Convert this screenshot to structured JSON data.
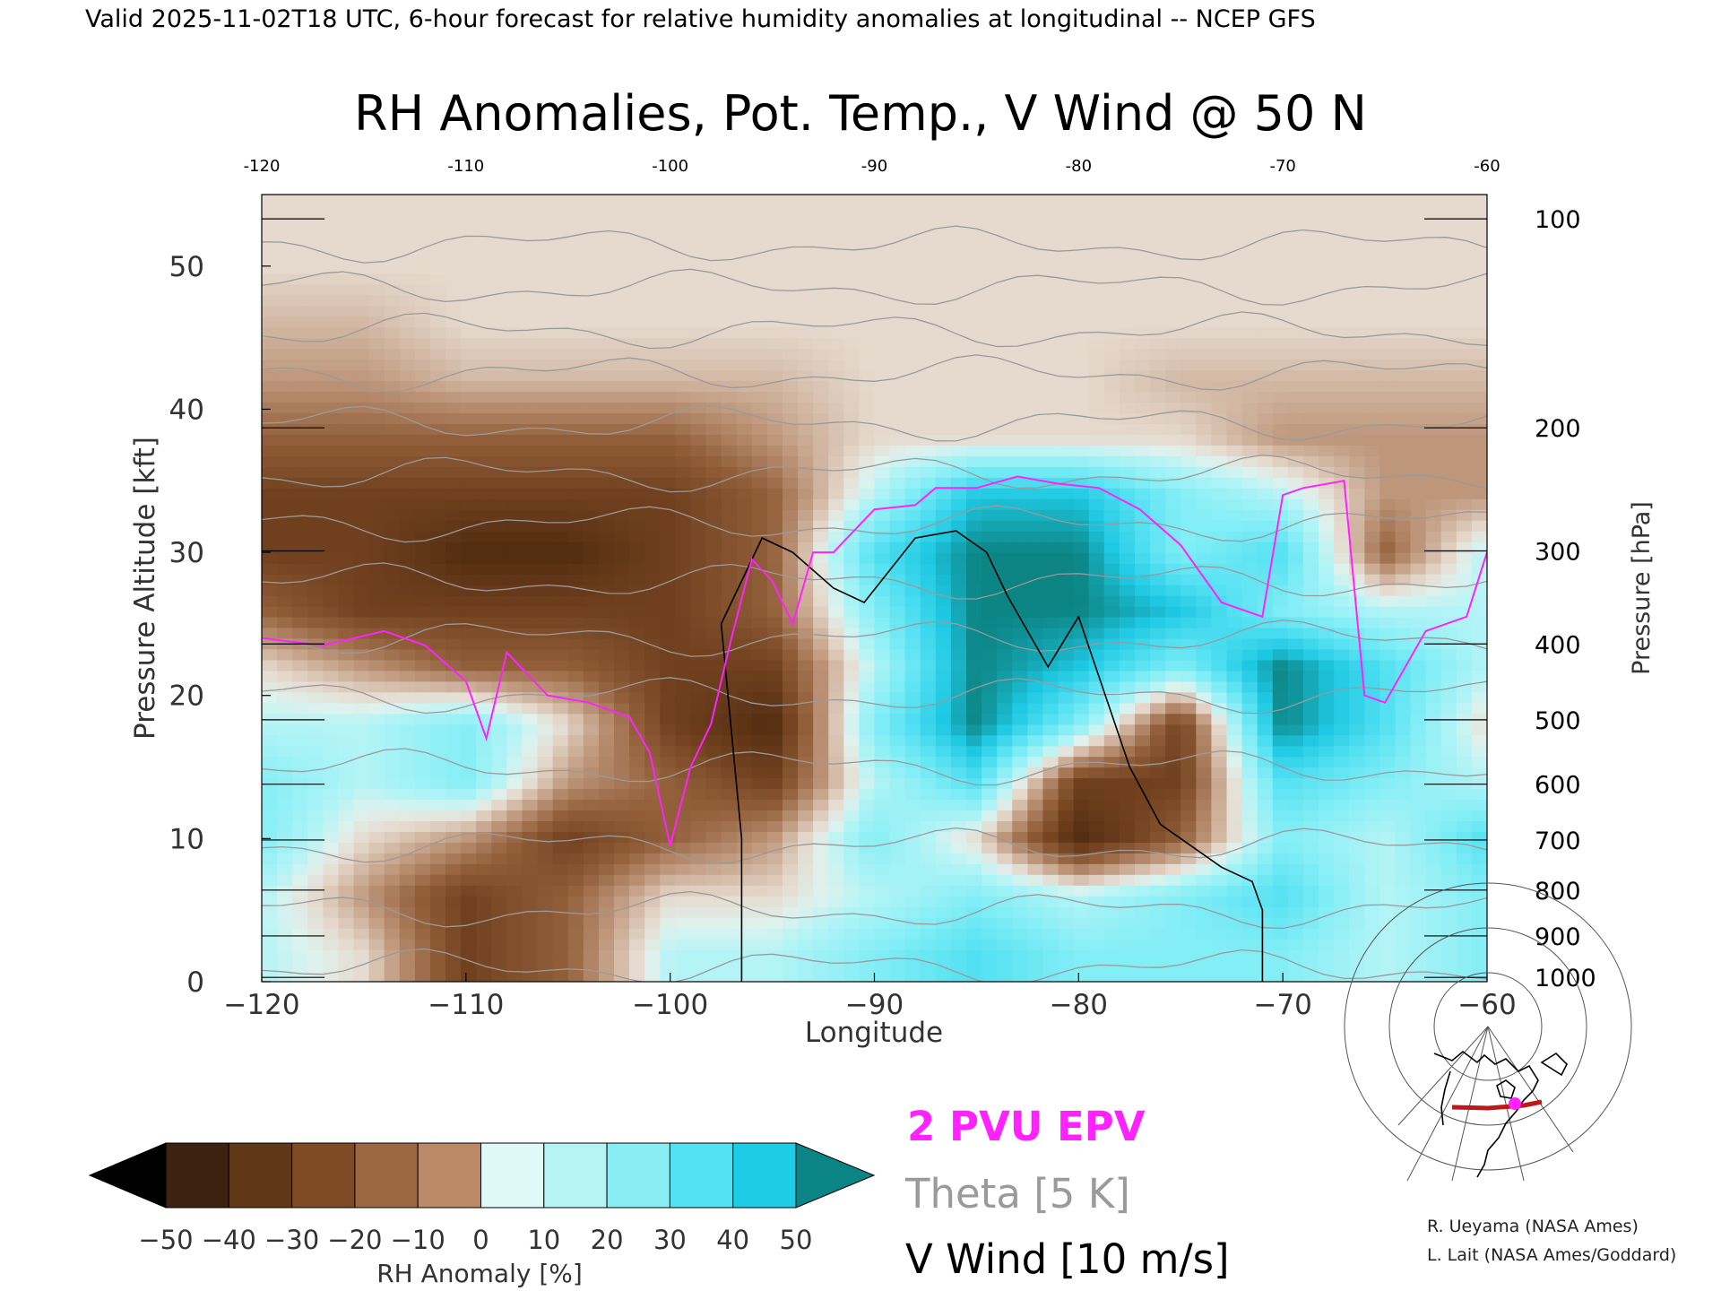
{
  "header": {
    "valid_line": "Valid 2025-11-02T18 UTC, 6-hour forecast for relative humidity anomalies at longitudinal -- NCEP GFS",
    "title": "RH Anomalies, Pot. Temp., V Wind @ 50 N"
  },
  "chart_data": {
    "type": "heatmap",
    "title": "RH Anomalies, Pot. Temp., V Wind @ 50 N",
    "xlabel": "Longitude",
    "ylabel_left": "Pressure Altitude [kft]",
    "ylabel_right": "Pressure [hPa]",
    "xlim": [
      -120,
      -60
    ],
    "ylim": [
      0,
      55
    ],
    "x_ticks": [
      -120,
      -110,
      -100,
      -90,
      -80,
      -70,
      -60
    ],
    "x_tick_labels": [
      "−120",
      "−110",
      "−100",
      "−90",
      "−80",
      "−70",
      "−60"
    ],
    "top_tick_labels": [
      "-120",
      "-110",
      "-100",
      "-90",
      "-80",
      "-70",
      "-60"
    ],
    "y_ticks": [
      0,
      10,
      20,
      30,
      40,
      50
    ],
    "pressure_ticks": [
      {
        "label": "100",
        "kft": 53.3
      },
      {
        "label": "200",
        "kft": 38.7
      },
      {
        "label": "300",
        "kft": 30.1
      },
      {
        "label": "400",
        "kft": 23.6
      },
      {
        "label": "500",
        "kft": 18.3
      },
      {
        "label": "600",
        "kft": 13.8
      },
      {
        "label": "700",
        "kft": 9.9
      },
      {
        "label": "800",
        "kft": 6.4
      },
      {
        "label": "900",
        "kft": 3.2
      },
      {
        "label": "1000",
        "kft": 0.3
      }
    ],
    "rh_anomaly_grid": {
      "lon": [
        -120,
        -115,
        -110,
        -105,
        -100,
        -95,
        -90,
        -85,
        -80,
        -75,
        -70,
        -65,
        -60
      ],
      "kft": [
        2,
        6,
        10,
        14,
        18,
        22,
        26,
        30,
        34,
        38,
        42,
        46,
        50,
        54
      ],
      "values": [
        [
          10,
          0,
          -30,
          -20,
          10,
          10,
          20,
          30,
          20,
          20,
          20,
          10,
          20
        ],
        [
          10,
          -10,
          -30,
          -20,
          0,
          0,
          10,
          20,
          10,
          20,
          30,
          10,
          20
        ],
        [
          20,
          0,
          -10,
          -30,
          -20,
          -10,
          20,
          0,
          -40,
          -20,
          20,
          10,
          30
        ],
        [
          20,
          10,
          20,
          -10,
          -20,
          -30,
          10,
          30,
          -30,
          -30,
          30,
          20,
          10
        ],
        [
          10,
          10,
          20,
          0,
          -30,
          -40,
          20,
          50,
          20,
          -30,
          50,
          30,
          0
        ],
        [
          0,
          -10,
          -20,
          -20,
          -30,
          -30,
          10,
          50,
          40,
          20,
          50,
          30,
          10
        ],
        [
          -20,
          -30,
          -30,
          -30,
          -30,
          -20,
          20,
          50,
          50,
          40,
          20,
          10,
          10
        ],
        [
          -30,
          -30,
          -40,
          -40,
          -30,
          -20,
          30,
          50,
          50,
          20,
          30,
          -20,
          10
        ],
        [
          -30,
          -30,
          -30,
          -30,
          -30,
          -20,
          10,
          40,
          40,
          20,
          10,
          -10,
          -10
        ],
        [
          -20,
          -20,
          -20,
          -20,
          -20,
          -10,
          0,
          0,
          0,
          0,
          -10,
          -10,
          -10
        ],
        [
          -10,
          -10,
          -5,
          -5,
          -5,
          -5,
          0,
          0,
          0,
          -5,
          -5,
          -5,
          -5
        ],
        [
          -5,
          -5,
          0,
          0,
          0,
          0,
          0,
          0,
          0,
          0,
          0,
          0,
          0
        ],
        [
          0,
          0,
          0,
          0,
          0,
          0,
          0,
          0,
          0,
          0,
          0,
          0,
          0
        ],
        [
          0,
          0,
          0,
          0,
          0,
          0,
          0,
          0,
          0,
          0,
          0,
          0,
          0
        ]
      ]
    },
    "theta_K": {
      "levels": [
        290,
        300,
        310,
        320,
        330,
        340,
        350,
        360,
        370,
        380,
        390,
        400,
        410,
        420
      ],
      "kft": [
        1,
        5,
        9.5,
        15,
        20,
        24,
        28,
        32,
        35.5,
        39,
        42.5,
        45.5,
        48.5,
        51.5
      ]
    },
    "pvu_2_contour": {
      "lon": [
        -120,
        -117,
        -114,
        -112,
        -110,
        -109,
        -108,
        -106,
        -104,
        -102,
        -101,
        -100,
        -99,
        -98,
        -97,
        -96,
        -95,
        -94,
        -93,
        -92,
        -90,
        -88,
        -87,
        -85,
        -83,
        -81,
        -79,
        -77,
        -75,
        -73,
        -71,
        -70,
        -69,
        -67,
        -66,
        -65,
        -63,
        -61,
        -60
      ],
      "kft": [
        24,
        23.5,
        24.5,
        23.5,
        21,
        17,
        23,
        20,
        19.5,
        18.5,
        16,
        9.5,
        15,
        18,
        24,
        29.5,
        28,
        25,
        30,
        30,
        33,
        33.3,
        34.5,
        34.5,
        35.3,
        34.8,
        34.5,
        33,
        30.5,
        26.5,
        25.5,
        34,
        34.5,
        35,
        20,
        19.5,
        24.5,
        25.5,
        30
      ]
    },
    "v_wind_zero_contour": {
      "lon": [
        -96.5,
        -96.5,
        -97.5,
        -95.5,
        -94,
        -92,
        -90.5,
        -88,
        -86,
        -84.5,
        -83.5,
        -81.5,
        -80,
        -77.5,
        -76,
        -73,
        -71.5,
        -71,
        -71
      ],
      "kft": [
        0,
        10,
        25,
        31,
        30,
        27.5,
        26.5,
        31,
        31.5,
        30,
        27,
        22,
        25.5,
        15,
        11,
        8,
        7,
        5,
        0
      ]
    },
    "annotations": {
      "series_legend": [
        "2 PVU EPV",
        "Theta [5 K]",
        "V Wind [10 m/s]"
      ],
      "colorbar_label": "RH Anomaly [%]",
      "colorbar_tick_labels": [
        "−50",
        "−40",
        "−30",
        "−20",
        "−10",
        "0",
        "10",
        "20",
        "30",
        "40",
        "50"
      ],
      "colorbar_colors": [
        "#000000",
        "#3b2211",
        "#603818",
        "#7e4b26",
        "#9c6842",
        "#bb8a66",
        "#d8b39c",
        "#ebd8c9",
        "#dff8f8",
        "#b6f4f4",
        "#88eef4",
        "#52e2f2",
        "#1dcde6",
        "#0da6c6",
        "#0a8484"
      ],
      "credits": [
        "R. Ueyama (NASA Ames)",
        "L. Lait (NASA Ames/Goddard)"
      ]
    },
    "colors": {
      "pvu": "#ff22ff",
      "theta": "#9a9a9a",
      "wind": "#000000",
      "inset_track": "#c01818",
      "inset_marker": "#ff22ff"
    }
  }
}
